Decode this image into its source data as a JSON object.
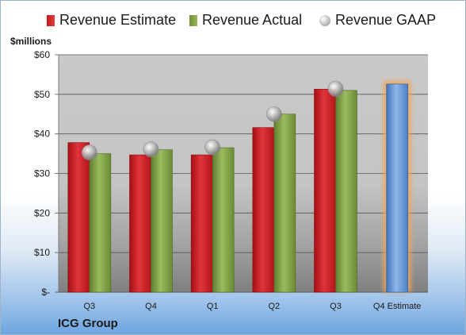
{
  "legend": {
    "estimate": "Revenue Estimate",
    "actual": "Revenue Actual",
    "gaap": "Revenue GAAP"
  },
  "unit_label": "$millions",
  "company": "ICG Group",
  "colors": {
    "estimate": "#d0222a",
    "actual": "#86a64c",
    "gaap": "#b0b0b0",
    "projection": "#6f9fd8",
    "projection_glow": "#f2a65a"
  },
  "chart_data": {
    "type": "bar",
    "categories": [
      "Q3",
      "Q4",
      "Q1",
      "Q2",
      "Q3",
      "Q4 Estimate"
    ],
    "ylim": [
      0,
      60
    ],
    "yticks": [
      0,
      10,
      20,
      30,
      40,
      50,
      60
    ],
    "ytick_labels": [
      "$-",
      "$10",
      "$20",
      "$30",
      "$40",
      "$50",
      "$60"
    ],
    "grid": true,
    "legend_position": "top",
    "series": [
      {
        "name": "Revenue Estimate",
        "values": [
          37.8,
          34.7,
          34.7,
          41.6,
          51.3,
          52.6
        ]
      },
      {
        "name": "Revenue Actual",
        "values": [
          35.0,
          36.0,
          36.5,
          45.0,
          51.0,
          null
        ]
      },
      {
        "name": "Revenue GAAP",
        "values": [
          35.3,
          36.1,
          36.6,
          45.0,
          51.4,
          null
        ]
      }
    ]
  }
}
